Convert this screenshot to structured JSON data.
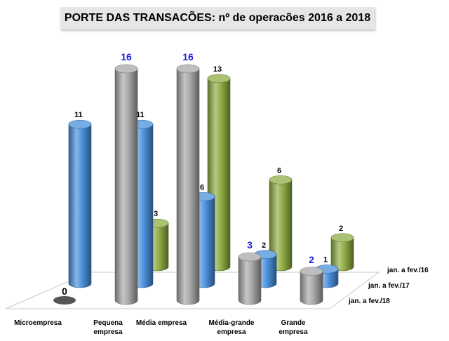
{
  "chart_data": {
    "type": "bar",
    "title": "PORTE DAS TRANSACÕES:  nº de operacões 2016 a 2018",
    "categories": [
      "Microempresa",
      "Pequena empresa",
      "Média empresa",
      "Média-grande empresa",
      "Grande empresa"
    ],
    "category_lines": [
      [
        "Microempresa"
      ],
      [
        "Pequena",
        "empresa"
      ],
      [
        "Média empresa"
      ],
      [
        "Média-grande",
        "empresa"
      ],
      [
        "Grande",
        "empresa"
      ]
    ],
    "series": [
      {
        "name": "jan. a fev./16",
        "values": [
          null,
          3,
          13,
          6,
          2
        ],
        "color": "#8fac44"
      },
      {
        "name": "jan. a fev./17",
        "values": [
          11,
          11,
          6,
          2,
          1
        ],
        "color": "#4a90dc"
      },
      {
        "name": "jan. a fev./18",
        "values": [
          0,
          16,
          16,
          3,
          2
        ],
        "color": "#a8a8a8"
      }
    ],
    "highlight_label_color": "#1a1adc",
    "label_color": "#000000",
    "ylim": [
      0,
      16
    ],
    "grid": false,
    "style": "3d-cylinder"
  }
}
